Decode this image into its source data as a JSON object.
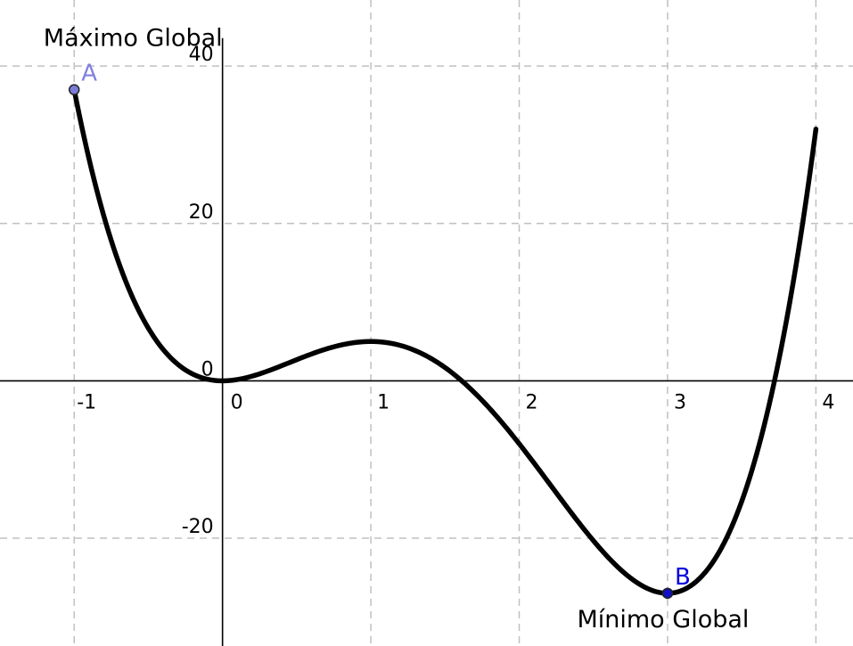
{
  "chart_data": {
    "type": "line",
    "title": "",
    "xlabel": "",
    "ylabel": "",
    "xlim": [
      -1.5,
      4.25
    ],
    "ylim": [
      -33.7,
      48.4
    ],
    "grid": true,
    "x_ticks": [
      {
        "value": -1,
        "label": "-1"
      },
      {
        "value": 0,
        "label": "0"
      },
      {
        "value": 1,
        "label": "1"
      },
      {
        "value": 2,
        "label": "2"
      },
      {
        "value": 3,
        "label": "3"
      },
      {
        "value": 4,
        "label": "4"
      }
    ],
    "y_ticks": [
      {
        "value": -20,
        "label": "-20"
      },
      {
        "value": 0,
        "label": "0"
      },
      {
        "value": 20,
        "label": "20"
      },
      {
        "value": 40,
        "label": "40"
      }
    ],
    "function": {
      "expression": "3x^4 - 16x^3 + 18x^2",
      "coefficients_high_to_low": [
        3,
        -16,
        18,
        0,
        0
      ],
      "domain": [
        -1,
        4
      ],
      "color": "#000000"
    },
    "points": [
      {
        "name": "A",
        "x": -1,
        "y": 37,
        "color": "#7b7bd9",
        "label_color": "#8080e0"
      },
      {
        "name": "B",
        "x": 3,
        "y": -27,
        "color": "#1010c0",
        "label_color": "#0000dd"
      }
    ],
    "annotations": [
      {
        "text": "Máximo Global",
        "point": "A"
      },
      {
        "text": "Mínimo Global",
        "point": "B"
      }
    ]
  }
}
